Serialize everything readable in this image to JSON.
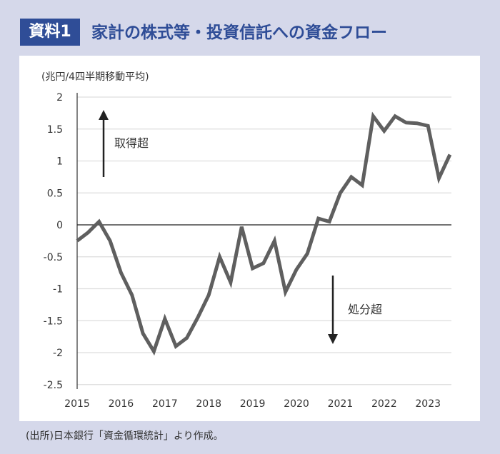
{
  "header": {
    "badge": "資料1",
    "title": "家計の株式等・投資信託への資金フロー"
  },
  "footnote": "(出所)日本銀行「資金循環統計」より作成。",
  "colors": {
    "line": "#5f5f5f",
    "accent": "#2f4d97"
  },
  "chart_data": {
    "type": "line",
    "title": "家計の株式等・投資信託への資金フロー",
    "ylabel": "(兆円/4四半期移動平均)",
    "xlabel": "",
    "ylim": [
      -2.5,
      2
    ],
    "yticks": [
      2,
      1.5,
      1,
      0.5,
      0,
      -0.5,
      -1,
      -1.5,
      -2,
      -2.5
    ],
    "ytick_labels": [
      "2",
      "1.5",
      "1",
      "0.5",
      "0",
      "-0.5",
      "-1",
      "-1.5",
      "-2",
      "-2.5"
    ],
    "xlim": [
      2015,
      2023.6
    ],
    "xticks": [
      "2015",
      "2016",
      "2017",
      "2018",
      "2019",
      "2020",
      "2021",
      "2022",
      "2023"
    ],
    "grid": true,
    "annotations": [
      {
        "text": "取得超",
        "arrow": "up"
      },
      {
        "text": "処分超",
        "arrow": "down"
      }
    ],
    "series": [
      {
        "name": "資金フロー",
        "x_start": 2015,
        "x_step": 0.25,
        "values": [
          -0.25,
          -0.12,
          0.05,
          -0.25,
          -0.75,
          -1.1,
          -1.7,
          -1.98,
          -1.47,
          -1.9,
          -1.77,
          -1.45,
          -1.1,
          -0.5,
          -0.9,
          -0.03,
          -0.68,
          -0.6,
          -0.25,
          -1.05,
          -0.7,
          -0.45,
          0.1,
          0.05,
          0.5,
          0.75,
          0.62,
          1.7,
          1.47,
          1.7,
          1.6,
          1.59,
          1.55,
          0.73,
          1.1
        ]
      }
    ]
  }
}
